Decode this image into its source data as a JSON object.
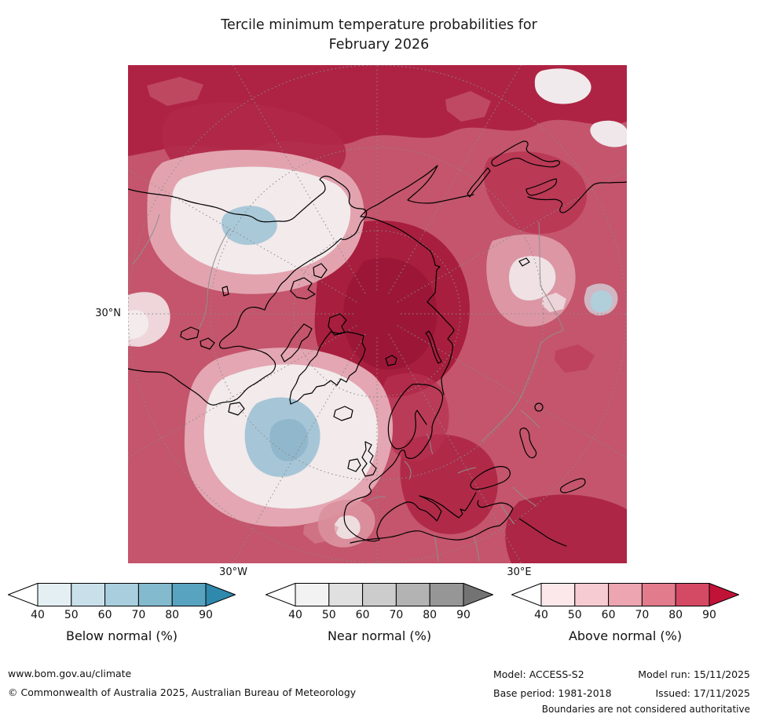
{
  "title": {
    "line1": "Tercile minimum temperature probabilities for",
    "line2": "February 2026"
  },
  "map": {
    "labels": {
      "latitude_left": "30°N",
      "longitude_bottom_left": "30°W",
      "longitude_bottom_right": "30°E"
    }
  },
  "legend": {
    "bars": [
      {
        "id": "below-normal",
        "label": "Below normal (%)",
        "ticks": [
          "40",
          "50",
          "60",
          "70",
          "80",
          "90"
        ],
        "colors": [
          "#ffffff",
          "#e4eff4",
          "#c9e0ea",
          "#a9cfde",
          "#83bace",
          "#58a3c0",
          "#2f89ac"
        ]
      },
      {
        "id": "near-normal",
        "label": "Near normal (%)",
        "ticks": [
          "40",
          "50",
          "60",
          "70",
          "80",
          "90"
        ],
        "colors": [
          "#ffffff",
          "#f2f2f2",
          "#e0e0e0",
          "#cccccc",
          "#b3b3b3",
          "#969696",
          "#737373"
        ]
      },
      {
        "id": "above-normal",
        "label": "Above normal (%)",
        "ticks": [
          "40",
          "50",
          "60",
          "70",
          "80",
          "90"
        ],
        "colors": [
          "#ffffff",
          "#fce8ea",
          "#f6cbd1",
          "#eda6b1",
          "#e27b8c",
          "#d44a64",
          "#c11338"
        ]
      }
    ]
  },
  "footer": {
    "website": "www.bom.gov.au/climate",
    "copyright": "© Commonwealth of Australia 2025, Australian Bureau of Meteorology",
    "model_label": "Model: ACCESS-S2",
    "model_run": "Model run: 15/11/2025",
    "base_period": "Base period: 1981-2018",
    "issued": "Issued: 17/11/2025",
    "disclaimer": "Boundaries are not considered authoritative"
  }
}
